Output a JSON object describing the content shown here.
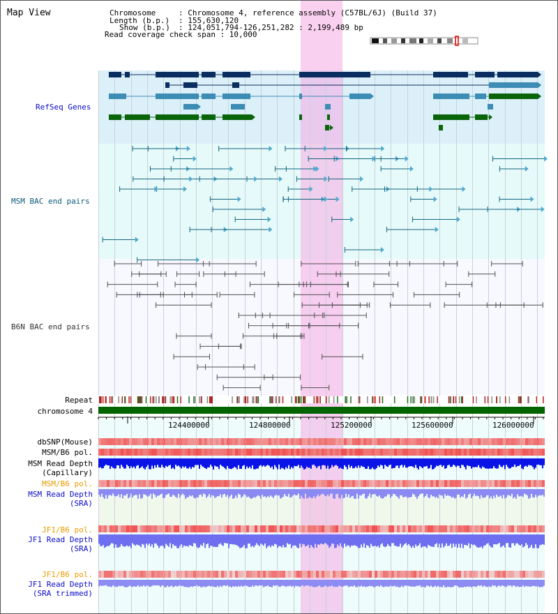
{
  "title": "Map View",
  "info": {
    "chromosome_key": "Chromosome",
    "chromosome_val": ": Chromosome 4, reference assembly (C57BL/6J) (Build 37)",
    "length_key": "Length (b.p.)",
    "length_val": ": 155,630,120",
    "show_key": "Show (b.p.)",
    "show_val": ": 124,051,794-126,251,282 : 2,199,489 bp",
    "coverage_line": "Read coverage check span : 10,000"
  },
  "tracks": {
    "refseq": "RefSeq Genes",
    "msm_bac": "MSM BAC end pairs",
    "b6n_bac": "B6N BAC end pairs",
    "repeat": "Repeat",
    "chromosome": "chromosome 4",
    "dbsnp": "dbSNP(Mouse)",
    "msm_b6_pol_1": "MSM/B6 pol.",
    "msm_read_depth_cap_1": "MSM Read Depth",
    "msm_read_depth_cap_2": "(Capillary)",
    "msm_b6_pol_2": "MSM/B6 pol.",
    "msm_read_depth_sra_1": "MSM Read Depth",
    "msm_read_depth_sra_2": "(SRA)",
    "jf1_b6_pol_1": "JF1/B6 pol.",
    "jf1_read_depth_sra_1": "JF1 Read Depth",
    "jf1_read_depth_sra_2": "(SRA)",
    "jf1_b6_pol_2": "JF1/B6 pol.",
    "jf1_read_depth_trim_1": "JF1 Read Depth",
    "jf1_read_depth_trim_2": "(SRA trimmed)"
  },
  "axis": {
    "ticks": [
      "124400000",
      "124800000",
      "125200000",
      "125600000",
      "126000000"
    ]
  },
  "colors": {
    "highlight": "#f6aae4",
    "refseq_dark": "#0a2d5f",
    "refseq_mid": "#3c8cb4",
    "refseq_green": "#0a640a",
    "msm_bac": "#14647d",
    "b6n_bac": "#505050",
    "chromosome_bar": "#006400",
    "depth_blue": "#0000e6",
    "depth_light": "#8282f0",
    "snp_red": "#f06464"
  }
}
